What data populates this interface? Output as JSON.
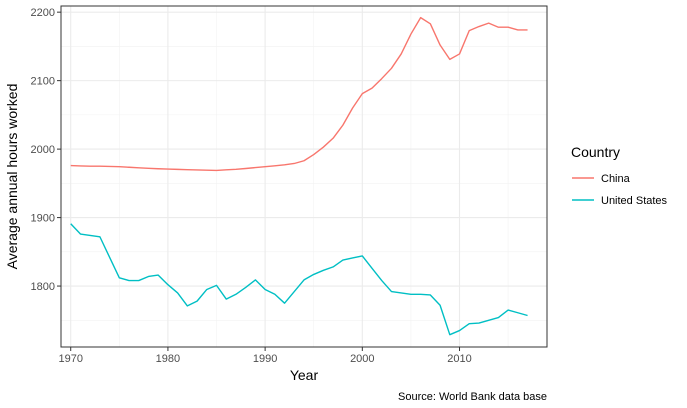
{
  "chart_data": {
    "type": "line",
    "title": "",
    "xlabel": "Year",
    "ylabel": "Average annual hours worked",
    "caption": "Source: World Bank data base",
    "xlim": [
      1969,
      2019
    ],
    "ylim": [
      1711,
      2209
    ],
    "x_ticks": [
      1970,
      1980,
      1990,
      2000,
      2010
    ],
    "y_ticks": [
      1800,
      1900,
      2000,
      2100,
      2200
    ],
    "grid": true,
    "legend": {
      "title": "Country",
      "position": "right"
    },
    "x": [
      1970,
      1971,
      1972,
      1973,
      1974,
      1975,
      1976,
      1977,
      1978,
      1979,
      1980,
      1981,
      1982,
      1983,
      1984,
      1985,
      1986,
      1987,
      1988,
      1989,
      1990,
      1991,
      1992,
      1993,
      1994,
      1995,
      1996,
      1997,
      1998,
      1999,
      2000,
      2001,
      2002,
      2003,
      2004,
      2005,
      2006,
      2007,
      2008,
      2009,
      2010,
      2011,
      2012,
      2013,
      2014,
      2015,
      2016,
      2017
    ],
    "series": [
      {
        "name": "China",
        "color": "#F8766D",
        "values": [
          1976,
          1975.5,
          1975,
          1975,
          1974.7,
          1974.3,
          1973.5,
          1972.7,
          1972,
          1971.3,
          1970.8,
          1970.4,
          1970,
          1969.6,
          1969.2,
          1968.8,
          1969.7,
          1970.5,
          1971.7,
          1973,
          1974.3,
          1975.6,
          1977,
          1979,
          1983,
          1992,
          2003,
          2016,
          2035,
          2060,
          2081,
          2089,
          2103,
          2118,
          2139,
          2168,
          2192,
          2183,
          2152,
          2131,
          2139,
          2173,
          2179,
          2184,
          2178,
          2178,
          2174,
          2174
        ]
      },
      {
        "name": "United States",
        "color": "#00BFC4",
        "values": [
          1891,
          1876,
          1874,
          1872,
          1842,
          1812,
          1808,
          1808,
          1814,
          1816,
          1802,
          1790,
          1771,
          1778,
          1795,
          1801,
          1781,
          1788,
          1798,
          1809,
          1795,
          1788,
          1775,
          1792,
          1809,
          1817,
          1823,
          1828,
          1838,
          1841,
          1844,
          1826,
          1808,
          1792,
          1790,
          1788,
          1788,
          1787,
          1772,
          1729,
          1735,
          1745,
          1746,
          1750,
          1754,
          1765,
          1761,
          1757
        ]
      }
    ]
  }
}
